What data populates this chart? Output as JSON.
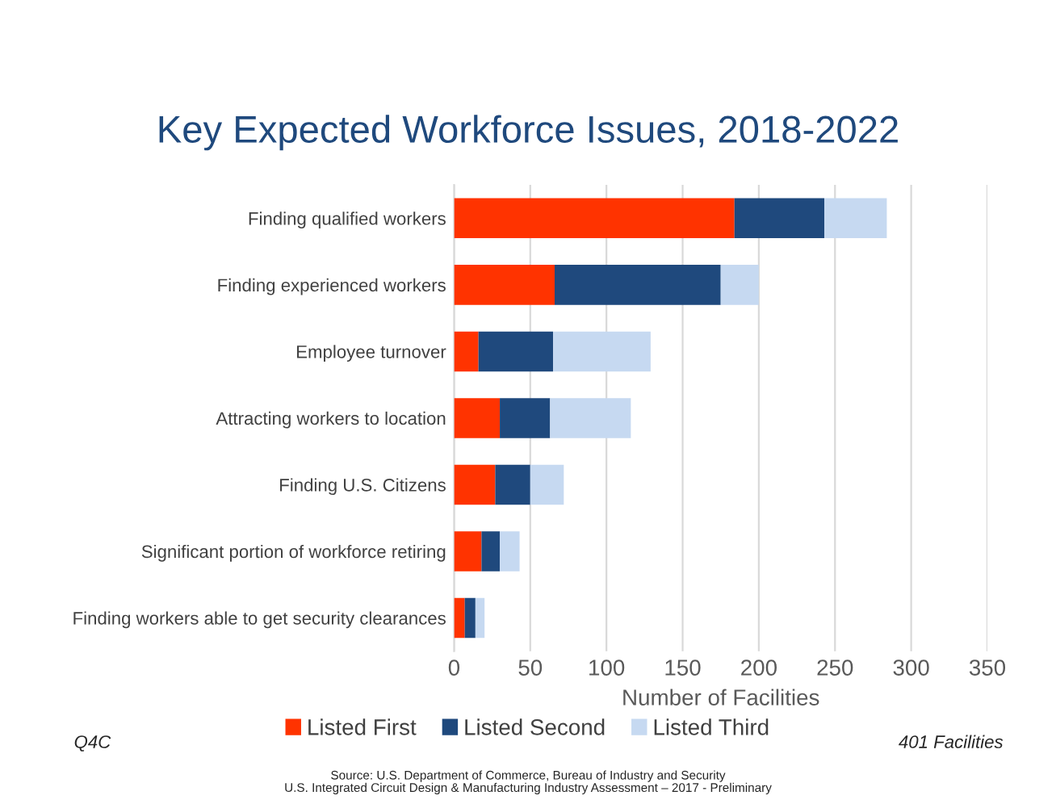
{
  "chart_data": {
    "type": "bar",
    "orientation": "horizontal",
    "stacked": true,
    "title": "Key Expected Workforce Issues, 2018-2022",
    "xlabel": "Number of Facilities",
    "categories": [
      "Finding qualified workers",
      "Finding experienced workers",
      "Employee turnover",
      "Attracting workers to location",
      "Finding U.S. Citizens",
      "Significant portion of workforce retiring",
      "Finding workers able to get security clearances"
    ],
    "series": [
      {
        "name": "Listed First",
        "color": "#ff3300",
        "values": [
          184,
          66,
          16,
          30,
          27,
          18,
          7
        ]
      },
      {
        "name": "Listed Second",
        "color": "#1f497d",
        "values": [
          59,
          109,
          49,
          33,
          23,
          12,
          7
        ]
      },
      {
        "name": "Listed Third",
        "color": "#c6d9f1",
        "values": [
          41,
          25,
          64,
          53,
          22,
          13,
          6
        ]
      }
    ],
    "xlim": [
      0,
      350
    ],
    "xticks": [
      0,
      50,
      100,
      150,
      200,
      250,
      300,
      350
    ],
    "grid": "x",
    "legend": "bottom",
    "annotations": [
      "Q4C",
      "401 Facilities",
      "Source: U.S. Department of Commerce, Bureau of Industry and Security\nU.S. Integrated Circuit Design & Manufacturing Industry Assessment – 2017 - Preliminary"
    ]
  }
}
